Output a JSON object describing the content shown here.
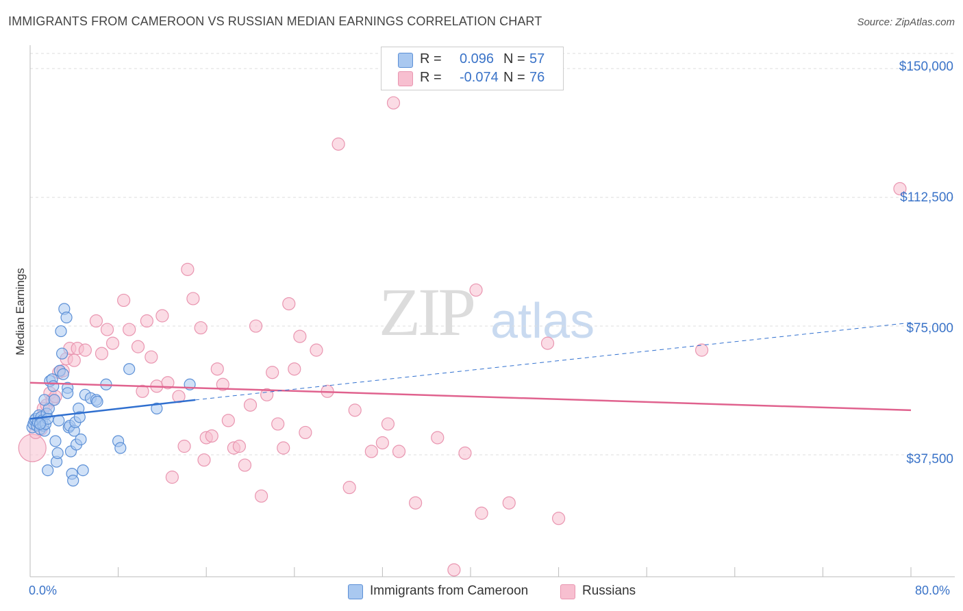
{
  "header": {
    "title": "IMMIGRANTS FROM CAMEROON VS RUSSIAN MEDIAN EARNINGS CORRELATION CHART",
    "source": "Source: ZipAtlas.com"
  },
  "watermark": {
    "zip": "ZIP",
    "atlas": "atlas"
  },
  "legend": {
    "rows": [
      {
        "r_label": "R =",
        "r_value": "0.096",
        "n_label": "N =",
        "n_value": "57"
      },
      {
        "r_label": "R =",
        "r_value": "-0.074",
        "n_label": "N =",
        "n_value": "76"
      }
    ]
  },
  "colors": {
    "cameroon_fill": "#a9c8f0",
    "cameroon_stroke": "#5b8fd6",
    "cameroon_line": "#2f6fcf",
    "russian_fill": "#f7bfd0",
    "russian_stroke": "#e995b0",
    "russian_line": "#e0628e",
    "grid": "#dddddd",
    "axis_text": "#3a73c8"
  },
  "chart_data": {
    "type": "scatter",
    "title": "IMMIGRANTS FROM CAMEROON VS RUSSIAN MEDIAN EARNINGS CORRELATION CHART",
    "xlabel": "",
    "ylabel": "Median Earnings",
    "xlim": [
      0,
      80
    ],
    "ylim": [
      2000,
      156000
    ],
    "x_tick_labels": [
      "0.0%",
      "80.0%"
    ],
    "y_ticks": [
      37500,
      75000,
      112500,
      150000
    ],
    "y_tick_labels": [
      "$37,500",
      "$75,000",
      "$112,500",
      "$150,000"
    ],
    "grid": true,
    "legend_position": "top-center",
    "series": [
      {
        "name": "Immigrants from Cameroon",
        "points": [
          [
            0.2,
            45500
          ],
          [
            0.3,
            46500
          ],
          [
            0.4,
            47500
          ],
          [
            0.5,
            48000
          ],
          [
            0.6,
            46000
          ],
          [
            0.7,
            47000
          ],
          [
            0.8,
            49000
          ],
          [
            0.9,
            45000
          ],
          [
            1.0,
            48500
          ],
          [
            1.1,
            47500
          ],
          [
            1.2,
            46000
          ],
          [
            1.3,
            44500
          ],
          [
            1.4,
            46500
          ],
          [
            1.5,
            49500
          ],
          [
            1.6,
            48000
          ],
          [
            1.7,
            51000
          ],
          [
            1.8,
            59000
          ],
          [
            1.3,
            53500
          ],
          [
            2.0,
            59500
          ],
          [
            2.1,
            57500
          ],
          [
            2.2,
            53500
          ],
          [
            2.3,
            41500
          ],
          [
            2.4,
            35500
          ],
          [
            2.5,
            38000
          ],
          [
            2.6,
            47500
          ],
          [
            2.7,
            62000
          ],
          [
            2.8,
            73500
          ],
          [
            2.9,
            67000
          ],
          [
            3.0,
            61000
          ],
          [
            3.1,
            80000
          ],
          [
            3.3,
            77500
          ],
          [
            3.4,
            57000
          ],
          [
            3.5,
            45500
          ],
          [
            3.6,
            46000
          ],
          [
            3.7,
            38500
          ],
          [
            3.8,
            32000
          ],
          [
            3.9,
            30000
          ],
          [
            4.0,
            44500
          ],
          [
            4.1,
            47000
          ],
          [
            4.2,
            40500
          ],
          [
            4.4,
            51000
          ],
          [
            4.5,
            48500
          ],
          [
            4.6,
            42000
          ],
          [
            4.8,
            33000
          ],
          [
            3.4,
            55500
          ],
          [
            5.0,
            55000
          ],
          [
            5.5,
            54000
          ],
          [
            6.0,
            53500
          ],
          [
            6.1,
            53000
          ],
          [
            6.9,
            58000
          ],
          [
            8.0,
            41500
          ],
          [
            8.2,
            39500
          ],
          [
            9.0,
            62500
          ],
          [
            11.5,
            51000
          ],
          [
            14.5,
            58000
          ],
          [
            1.6,
            33000
          ],
          [
            0.9,
            46500
          ]
        ],
        "trend": {
          "x": [
            0,
            15
          ],
          "y": [
            48000,
            53500
          ],
          "dashed_extension_to": [
            80,
            76000
          ]
        }
      },
      {
        "name": "Russians",
        "points": [
          [
            0.2,
            39500
          ],
          [
            0.5,
            44000
          ],
          [
            0.8,
            46500
          ],
          [
            1.0,
            45000
          ],
          [
            1.2,
            51000
          ],
          [
            1.5,
            52000
          ],
          [
            1.8,
            55500
          ],
          [
            2.0,
            53500
          ],
          [
            2.3,
            54500
          ],
          [
            2.6,
            61500
          ],
          [
            3.0,
            62000
          ],
          [
            3.3,
            65500
          ],
          [
            3.6,
            68500
          ],
          [
            4.0,
            65000
          ],
          [
            4.3,
            68500
          ],
          [
            5.0,
            68000
          ],
          [
            6.0,
            76500
          ],
          [
            6.5,
            67000
          ],
          [
            7.0,
            74000
          ],
          [
            7.5,
            70000
          ],
          [
            8.5,
            82500
          ],
          [
            9.0,
            74000
          ],
          [
            9.8,
            69000
          ],
          [
            10.2,
            56000
          ],
          [
            10.6,
            76500
          ],
          [
            11.0,
            66000
          ],
          [
            11.5,
            57500
          ],
          [
            12.0,
            78000
          ],
          [
            12.5,
            58500
          ],
          [
            12.9,
            31000
          ],
          [
            13.5,
            54500
          ],
          [
            14.0,
            40000
          ],
          [
            14.3,
            91500
          ],
          [
            14.8,
            83000
          ],
          [
            15.5,
            74500
          ],
          [
            15.8,
            36000
          ],
          [
            16.0,
            42500
          ],
          [
            16.5,
            43000
          ],
          [
            17.0,
            62500
          ],
          [
            17.5,
            58000
          ],
          [
            18.0,
            47500
          ],
          [
            18.5,
            39500
          ],
          [
            19.0,
            40000
          ],
          [
            19.5,
            34500
          ],
          [
            20.0,
            52000
          ],
          [
            20.5,
            75000
          ],
          [
            21.0,
            25500
          ],
          [
            21.5,
            55000
          ],
          [
            22.0,
            61500
          ],
          [
            22.5,
            46500
          ],
          [
            23.0,
            39500
          ],
          [
            23.5,
            81500
          ],
          [
            24.0,
            62500
          ],
          [
            24.5,
            72000
          ],
          [
            25.0,
            44000
          ],
          [
            26.0,
            68000
          ],
          [
            27.0,
            56000
          ],
          [
            28.0,
            128000
          ],
          [
            29.0,
            28000
          ],
          [
            29.5,
            50500
          ],
          [
            31.0,
            38500
          ],
          [
            32.0,
            41000
          ],
          [
            32.5,
            46500
          ],
          [
            33.0,
            140000
          ],
          [
            33.5,
            38500
          ],
          [
            35.0,
            23500
          ],
          [
            37.0,
            42500
          ],
          [
            39.5,
            38000
          ],
          [
            40.5,
            85500
          ],
          [
            41.0,
            20500
          ],
          [
            43.5,
            23500
          ],
          [
            47.0,
            70000
          ],
          [
            48.0,
            19000
          ],
          [
            61.0,
            68000
          ],
          [
            79.0,
            115000
          ],
          [
            38.5,
            4000
          ]
        ],
        "trend": {
          "x": [
            0,
            80
          ],
          "y": [
            58500,
            50500
          ]
        }
      }
    ]
  }
}
